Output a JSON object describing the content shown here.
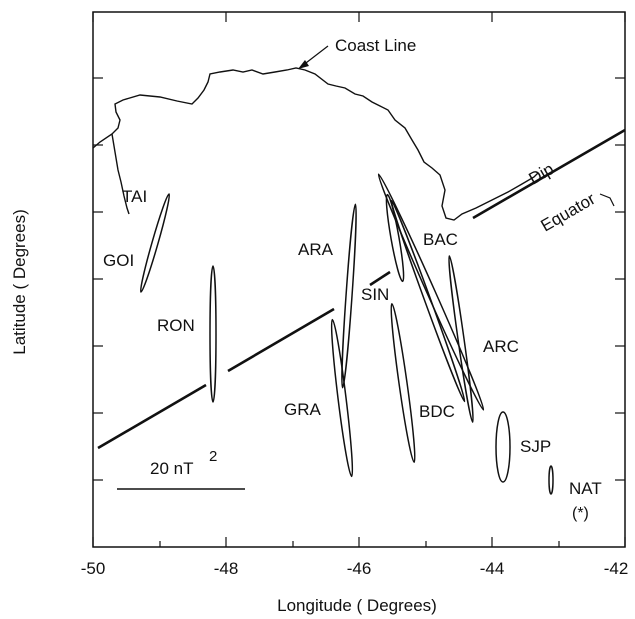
{
  "figure": {
    "xlabel": "Longitude ( Degrees)",
    "ylabel": "Latitude ( Degrees)",
    "x_ticks": [
      "-50",
      "-48",
      "-46",
      "-44",
      "-42"
    ],
    "annotations": {
      "coast_line": "Coast Line",
      "dip": "Dip",
      "equator": "Equator",
      "scale_text": "20 nT",
      "scale_exp": "2",
      "asterisk": "(*)"
    },
    "stations": [
      {
        "code": "TAI"
      },
      {
        "code": "GOI"
      },
      {
        "code": "RON"
      },
      {
        "code": "ARA"
      },
      {
        "code": "SIN"
      },
      {
        "code": "GRA"
      },
      {
        "code": "BAC"
      },
      {
        "code": "ARC"
      },
      {
        "code": "BDC"
      },
      {
        "code": "SJP"
      },
      {
        "code": "NAT"
      }
    ],
    "colors": {
      "ink": "#111111",
      "background": "#ffffff"
    }
  }
}
